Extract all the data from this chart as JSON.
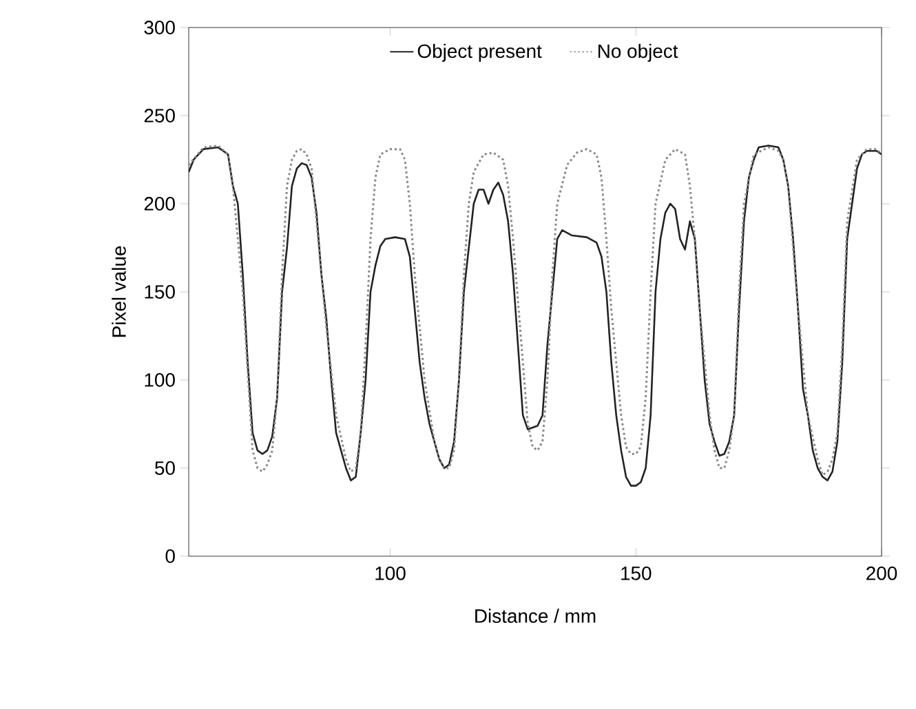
{
  "chart_data": {
    "type": "line",
    "xlabel": "Distance / mm",
    "ylabel": "Pixel value",
    "xlim": [
      59,
      200
    ],
    "ylim": [
      0,
      300
    ],
    "xticks": [
      100,
      150,
      200
    ],
    "yticks": [
      0,
      50,
      100,
      150,
      200,
      250,
      300
    ],
    "grid": false,
    "legend": "top",
    "marker": "none",
    "series": [
      {
        "name": "Object present",
        "color": "#222222",
        "line_style": "solid",
        "x": [
          59,
          60,
          62,
          65,
          67,
          68,
          69,
          70,
          71,
          72,
          73,
          74,
          75,
          76,
          77,
          78,
          79,
          80,
          81,
          82,
          83,
          84,
          85,
          86,
          87,
          88,
          89,
          90,
          91,
          92,
          93,
          94,
          95,
          96,
          97,
          98,
          99,
          101,
          103,
          104,
          105,
          106,
          107,
          108,
          109,
          110,
          111,
          112,
          113,
          114,
          115,
          116,
          117,
          118,
          119,
          120,
          121,
          122,
          123,
          124,
          125,
          126,
          127,
          128,
          130,
          131,
          132,
          133,
          134,
          135,
          137,
          140,
          142,
          143,
          144,
          145,
          146,
          147,
          148,
          149,
          150,
          151,
          152,
          153,
          154,
          155,
          156,
          157,
          158,
          159,
          160,
          161,
          162,
          163,
          164,
          165,
          166,
          167,
          168,
          169,
          170,
          171,
          172,
          173,
          174,
          175,
          177,
          179,
          180,
          181,
          182,
          183,
          184,
          185,
          186,
          187,
          188,
          189,
          190,
          191,
          192,
          193,
          194,
          195,
          196,
          197,
          199,
          200
        ],
        "values": [
          218,
          225,
          231,
          232,
          228,
          210,
          200,
          160,
          110,
          70,
          60,
          58,
          60,
          68,
          90,
          150,
          175,
          210,
          220,
          223,
          222,
          215,
          195,
          160,
          135,
          100,
          70,
          60,
          50,
          43,
          45,
          70,
          100,
          150,
          165,
          176,
          180,
          181,
          180,
          170,
          140,
          110,
          90,
          75,
          65,
          55,
          50,
          52,
          65,
          100,
          150,
          175,
          200,
          208,
          208,
          200,
          208,
          212,
          205,
          190,
          160,
          120,
          80,
          72,
          74,
          80,
          120,
          150,
          180,
          185,
          182,
          181,
          178,
          170,
          150,
          110,
          80,
          60,
          45,
          40,
          40,
          42,
          50,
          80,
          150,
          180,
          195,
          200,
          197,
          180,
          174,
          190,
          180,
          140,
          100,
          75,
          65,
          57,
          58,
          65,
          80,
          140,
          190,
          215,
          225,
          232,
          233,
          232,
          225,
          210,
          180,
          140,
          95,
          80,
          60,
          50,
          45,
          43,
          48,
          65,
          110,
          180,
          200,
          220,
          228,
          230,
          230,
          228
        ]
      },
      {
        "name": "No object",
        "color": "#888888",
        "line_style": "dotted",
        "x": [
          59,
          62,
          65,
          67,
          68,
          70,
          72,
          73,
          74,
          75,
          76,
          77,
          78,
          79,
          80,
          81,
          82,
          83,
          84,
          85,
          87,
          89,
          91,
          92,
          93,
          94,
          95,
          96,
          97,
          98,
          100,
          102,
          103,
          104,
          105,
          107,
          109,
          110,
          111,
          112,
          113,
          114,
          115,
          116,
          117,
          119,
          121,
          123,
          124,
          125,
          127,
          128,
          129,
          130,
          131,
          132,
          133,
          134,
          136,
          138,
          140,
          142,
          143,
          144,
          145,
          147,
          148,
          149,
          150,
          151,
          152,
          153,
          154,
          156,
          158,
          160,
          161,
          162,
          163,
          165,
          166,
          167,
          168,
          169,
          170,
          171,
          172,
          174,
          177,
          179,
          180,
          181,
          183,
          185,
          187,
          188,
          189,
          190,
          191,
          192,
          193,
          195,
          197,
          199,
          200
        ],
        "values": [
          222,
          232,
          233,
          228,
          210,
          150,
          60,
          50,
          48,
          52,
          60,
          90,
          160,
          210,
          225,
          230,
          231,
          228,
          220,
          190,
          130,
          80,
          55,
          48,
          50,
          70,
          120,
          180,
          215,
          228,
          231,
          231,
          225,
          200,
          160,
          100,
          65,
          55,
          50,
          50,
          60,
          100,
          160,
          200,
          218,
          228,
          229,
          225,
          210,
          180,
          110,
          75,
          62,
          60,
          65,
          100,
          160,
          200,
          222,
          229,
          231,
          228,
          215,
          180,
          140,
          80,
          62,
          58,
          58,
          62,
          90,
          150,
          200,
          225,
          231,
          228,
          210,
          180,
          140,
          80,
          60,
          50,
          50,
          60,
          80,
          150,
          200,
          228,
          232,
          230,
          225,
          210,
          140,
          80,
          55,
          46,
          48,
          55,
          70,
          120,
          190,
          225,
          231,
          231,
          228
        ]
      }
    ]
  }
}
